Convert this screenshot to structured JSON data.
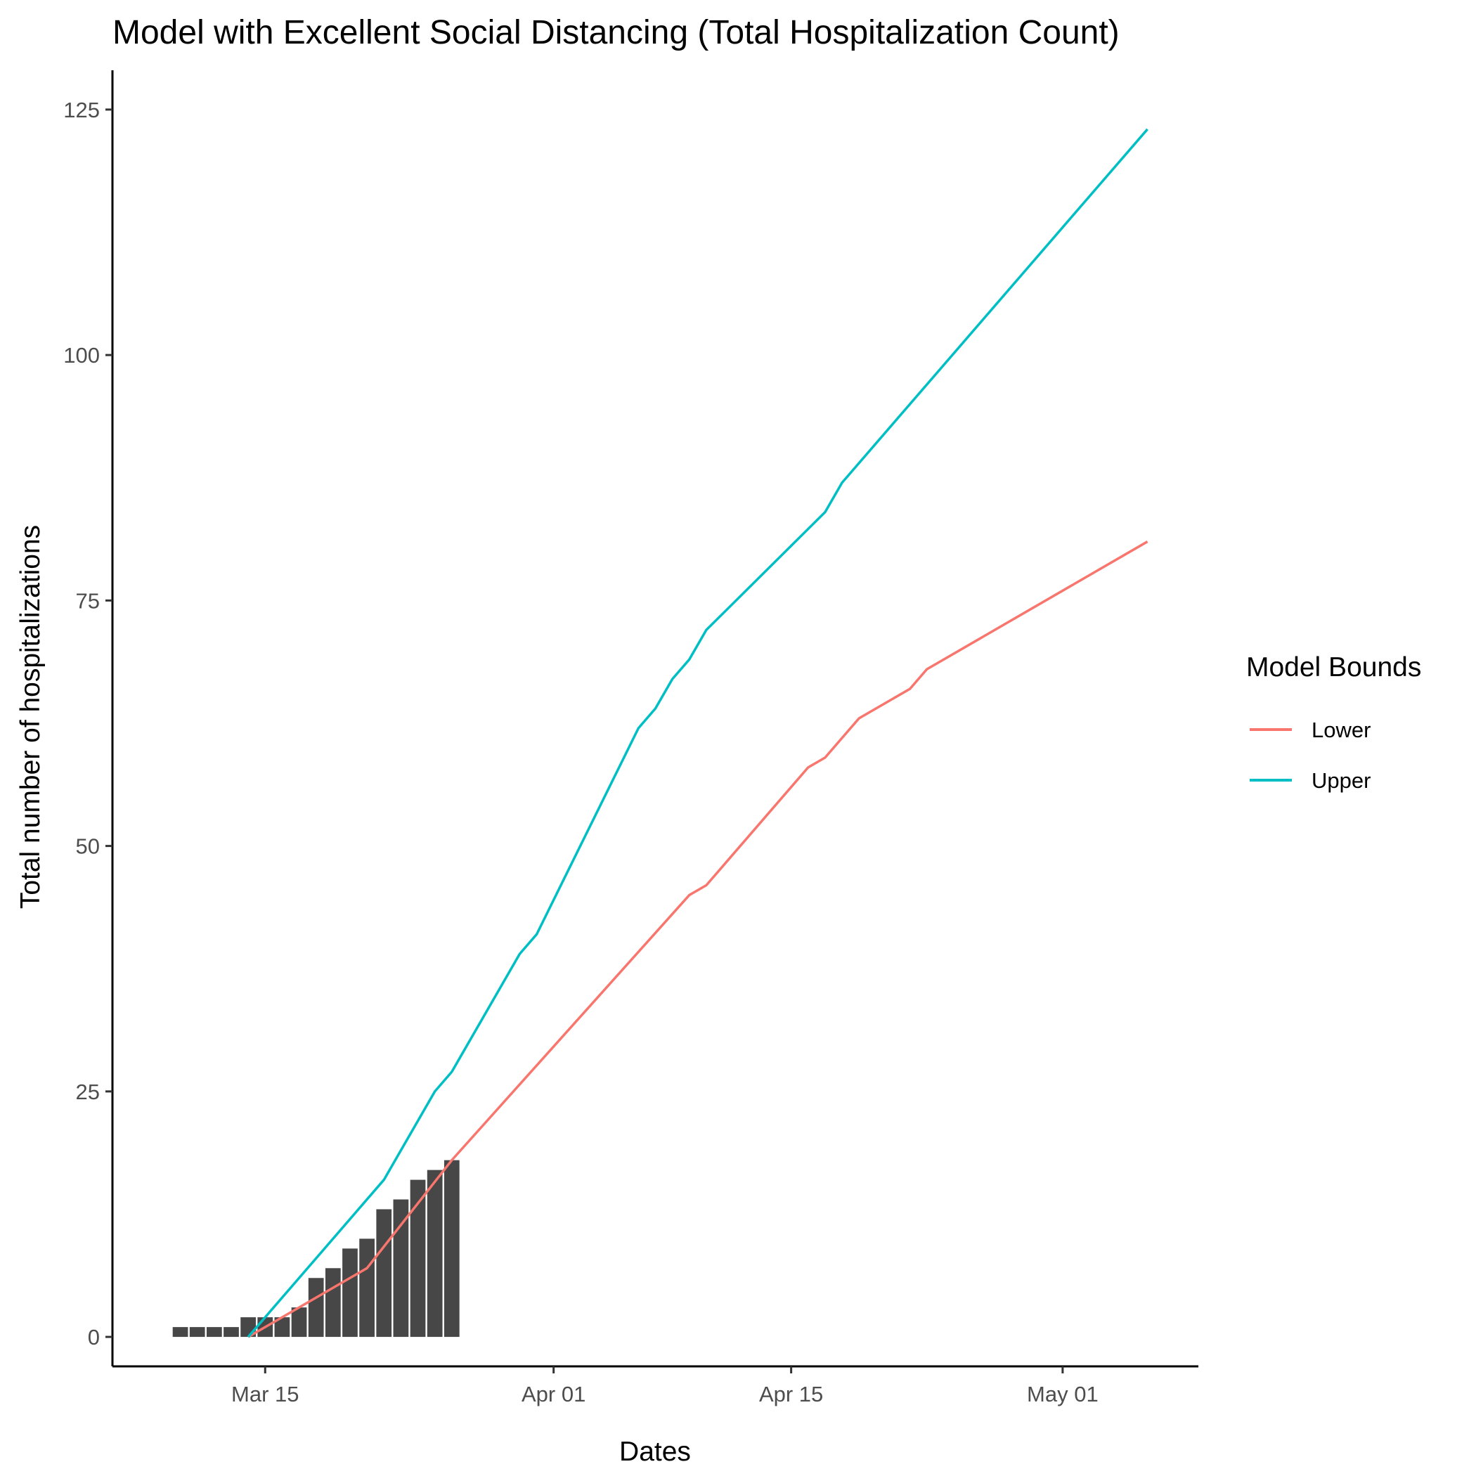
{
  "chart_data": {
    "type": "bar+line",
    "title": "Model with Excellent Social Distancing (Total Hospitalization Count)",
    "xlabel": "Dates",
    "ylabel": "Total number of hospitalizations",
    "x_type": "date",
    "xlim": [
      "2020-03-06",
      "2020-05-09"
    ],
    "ylim": [
      -3,
      129
    ],
    "x_ticks": [
      {
        "date": "2020-03-15",
        "label": "Mar 15"
      },
      {
        "date": "2020-04-01",
        "label": "Apr 01"
      },
      {
        "date": "2020-04-15",
        "label": "Apr 15"
      },
      {
        "date": "2020-05-01",
        "label": "May 01"
      }
    ],
    "y_ticks": [
      0,
      25,
      50,
      75,
      100,
      125
    ],
    "grid": false,
    "bars": {
      "color": "#474747",
      "data": [
        {
          "x": "2020-03-10",
          "y": 1
        },
        {
          "x": "2020-03-11",
          "y": 1
        },
        {
          "x": "2020-03-12",
          "y": 1
        },
        {
          "x": "2020-03-13",
          "y": 1
        },
        {
          "x": "2020-03-14",
          "y": 2
        },
        {
          "x": "2020-03-15",
          "y": 2
        },
        {
          "x": "2020-03-16",
          "y": 2
        },
        {
          "x": "2020-03-17",
          "y": 3
        },
        {
          "x": "2020-03-18",
          "y": 6
        },
        {
          "x": "2020-03-19",
          "y": 7
        },
        {
          "x": "2020-03-20",
          "y": 9
        },
        {
          "x": "2020-03-21",
          "y": 10
        },
        {
          "x": "2020-03-22",
          "y": 13
        },
        {
          "x": "2020-03-23",
          "y": 14
        },
        {
          "x": "2020-03-24",
          "y": 16
        },
        {
          "x": "2020-03-25",
          "y": 17
        },
        {
          "x": "2020-03-26",
          "y": 18
        }
      ]
    },
    "legend": {
      "title": "Model Bounds",
      "placement": "right"
    },
    "series": [
      {
        "name": "Lower",
        "color": "#f8766d",
        "points": [
          {
            "x": "2020-03-14",
            "y": 0
          },
          {
            "x": "2020-03-21",
            "y": 7
          },
          {
            "x": "2020-03-26",
            "y": 18
          },
          {
            "x": "2020-04-09",
            "y": 45
          },
          {
            "x": "2020-04-10",
            "y": 46
          },
          {
            "x": "2020-04-16",
            "y": 58
          },
          {
            "x": "2020-04-17",
            "y": 59
          },
          {
            "x": "2020-04-19",
            "y": 63
          },
          {
            "x": "2020-04-22",
            "y": 66
          },
          {
            "x": "2020-04-23",
            "y": 68
          },
          {
            "x": "2020-05-06",
            "y": 81
          }
        ]
      },
      {
        "name": "Upper",
        "color": "#00bfc4",
        "points": [
          {
            "x": "2020-03-14",
            "y": 0
          },
          {
            "x": "2020-03-22",
            "y": 16
          },
          {
            "x": "2020-03-25",
            "y": 25
          },
          {
            "x": "2020-03-26",
            "y": 27
          },
          {
            "x": "2020-03-30",
            "y": 39
          },
          {
            "x": "2020-03-31",
            "y": 41
          },
          {
            "x": "2020-04-06",
            "y": 62
          },
          {
            "x": "2020-04-07",
            "y": 64
          },
          {
            "x": "2020-04-08",
            "y": 67
          },
          {
            "x": "2020-04-09",
            "y": 69
          },
          {
            "x": "2020-04-10",
            "y": 72
          },
          {
            "x": "2020-04-17",
            "y": 84
          },
          {
            "x": "2020-04-18",
            "y": 87
          },
          {
            "x": "2020-05-06",
            "y": 123
          }
        ]
      }
    ]
  }
}
